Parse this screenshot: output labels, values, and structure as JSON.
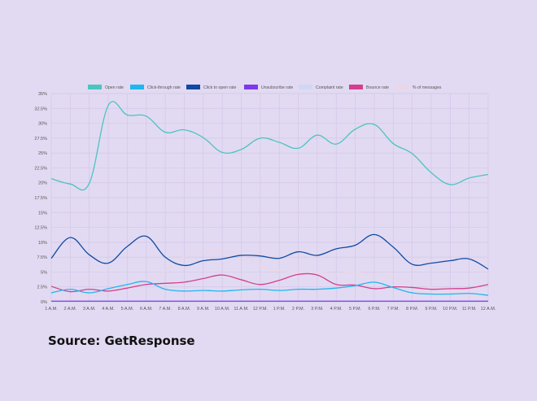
{
  "source_text": "Source: GetResponse",
  "chart_data": {
    "type": "line",
    "categories": [
      "1 A.M.",
      "2 A.M.",
      "3 A.M.",
      "4 A.M.",
      "5 A.M.",
      "6 A.M.",
      "7 A.M.",
      "8 A.M.",
      "9 A.M.",
      "10 A.M.",
      "11 A.M.",
      "12 P.M.",
      "1 P.M.",
      "2 P.M.",
      "3 P.M.",
      "4 P.M.",
      "5 P.M.",
      "6 P.M.",
      "7 P.M.",
      "8 P.M.",
      "9 P.M.",
      "10 P.M.",
      "11 P.M.",
      "12 A.M."
    ],
    "ylim": [
      0,
      35
    ],
    "yticks": [
      "0%",
      "2.5%",
      "5%",
      "7.5%",
      "10%",
      "12.5%",
      "15%",
      "17.5%",
      "20%",
      "22.5%",
      "25%",
      "27.5%",
      "30%",
      "32.5%",
      "35%"
    ],
    "grid": true,
    "legend_position": "top",
    "series": [
      {
        "name": "Open rate",
        "color": "#4cc4c0",
        "values": [
          20.7,
          19.8,
          19.9,
          33.0,
          31.4,
          31.2,
          28.5,
          28.9,
          27.6,
          25.1,
          25.6,
          27.5,
          26.8,
          25.8,
          28.0,
          26.5,
          29.0,
          29.8,
          26.6,
          24.9,
          21.7,
          19.7,
          20.8,
          21.4
        ]
      },
      {
        "name": "Click-through rate",
        "color": "#1fb6f2",
        "values": [
          1.5,
          2.1,
          1.5,
          2.2,
          2.9,
          3.4,
          2.1,
          1.8,
          1.9,
          1.8,
          2.0,
          2.1,
          1.9,
          2.1,
          2.1,
          2.3,
          2.7,
          3.3,
          2.4,
          1.5,
          1.3,
          1.3,
          1.4,
          1.1
        ]
      },
      {
        "name": "Click to open rate",
        "color": "#0f4aa3",
        "values": [
          7.3,
          10.8,
          7.9,
          6.5,
          9.3,
          11.0,
          7.5,
          6.1,
          6.9,
          7.2,
          7.8,
          7.7,
          7.3,
          8.4,
          7.8,
          8.9,
          9.5,
          11.3,
          9.2,
          6.3,
          6.5,
          6.9,
          7.2,
          5.5
        ]
      },
      {
        "name": "Unsubscribe rate",
        "color": "#7c3aed",
        "values": [
          0.1,
          0.1,
          0.1,
          0.1,
          0.1,
          0.1,
          0.1,
          0.1,
          0.1,
          0.1,
          0.1,
          0.1,
          0.1,
          0.1,
          0.1,
          0.1,
          0.1,
          0.1,
          0.1,
          0.1,
          0.1,
          0.1,
          0.1,
          0.1
        ]
      },
      {
        "name": "Complaint rate",
        "color": "#cfd8f2",
        "values": [
          0.05,
          0.05,
          0.05,
          0.05,
          0.05,
          0.05,
          0.05,
          0.05,
          0.05,
          0.05,
          0.05,
          0.05,
          0.05,
          0.05,
          0.05,
          0.05,
          0.05,
          0.05,
          0.05,
          0.05,
          0.05,
          0.05,
          0.05,
          0.05
        ]
      },
      {
        "name": "Bounce rate",
        "color": "#d43f8d",
        "values": [
          2.6,
          1.7,
          2.1,
          1.8,
          2.3,
          2.9,
          3.1,
          3.3,
          3.9,
          4.5,
          3.7,
          2.9,
          3.6,
          4.6,
          4.5,
          2.9,
          2.8,
          2.2,
          2.5,
          2.4,
          2.1,
          2.2,
          2.3,
          2.9
        ]
      },
      {
        "name": "% of messages",
        "color": "#ead6e8",
        "values": [
          0.4,
          0.6,
          1.0,
          1.6,
          2.4,
          3.6,
          5.2,
          7.6,
          8.4,
          8.6,
          7.8,
          6.0,
          5.2,
          5.0,
          5.0,
          4.8,
          5.0,
          4.6,
          4.2,
          3.4,
          2.4,
          1.6,
          1.0,
          0.6
        ]
      }
    ]
  }
}
